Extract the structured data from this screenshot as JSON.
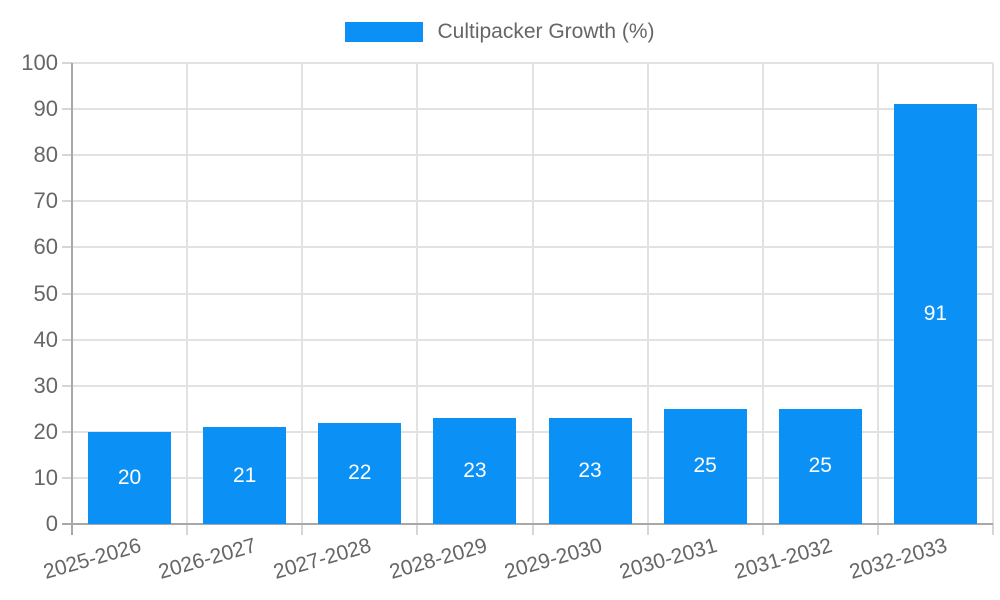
{
  "chart_data": {
    "type": "bar",
    "title": "",
    "legend": {
      "label": "Cultipacker Growth (%)",
      "position": "top"
    },
    "categories": [
      "2025-2026",
      "2026-2027",
      "2027-2028",
      "2028-2029",
      "2029-2030",
      "2030-2031",
      "2031-2032",
      "2032-2033"
    ],
    "values": [
      20,
      21,
      22,
      23,
      23,
      25,
      25,
      91
    ],
    "value_labels": [
      "20",
      "21",
      "22",
      "23",
      "23",
      "25",
      "25",
      "91"
    ],
    "yticks": [
      0,
      10,
      20,
      30,
      40,
      50,
      60,
      70,
      80,
      90,
      100
    ],
    "ylim": [
      0,
      100
    ],
    "xlabel": "",
    "ylabel": "",
    "grid": true,
    "colors": {
      "bar": "#0b90f5",
      "value_label": "#ffffff",
      "axis_text": "#666666",
      "gridline": "#e2e2e2",
      "axis_line": "#a8a8a8",
      "tick": "#d6d6d6"
    }
  }
}
